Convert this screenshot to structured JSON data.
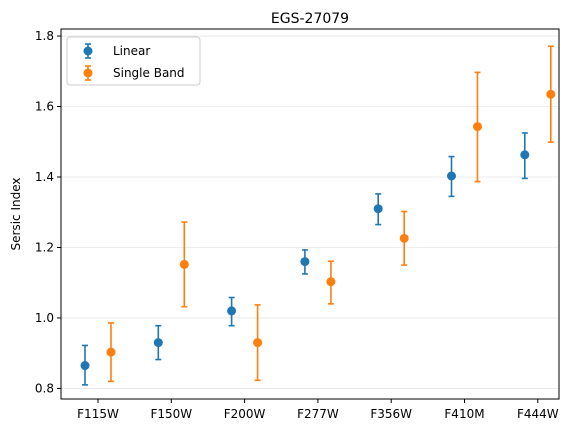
{
  "chart_data": {
    "type": "scatter",
    "title": "EGS-27079",
    "xlabel": "",
    "ylabel": "Sersic Index",
    "categories": [
      "F115W",
      "F150W",
      "F200W",
      "F277W",
      "F356W",
      "F410M",
      "F444W"
    ],
    "ylim": [
      0.77,
      1.82
    ],
    "yticks": [
      "0.8",
      "1.0",
      "1.2",
      "1.4",
      "1.6",
      "1.8"
    ],
    "grid": "horizontal",
    "legend_position": "top-left",
    "series": [
      {
        "name": "Linear",
        "color": "#1f77b4",
        "values": [
          0.865,
          0.93,
          1.02,
          1.16,
          1.31,
          1.403,
          1.463
        ],
        "err_low": [
          0.055,
          0.048,
          0.042,
          0.035,
          0.045,
          0.058,
          0.067
        ],
        "err_high": [
          0.057,
          0.048,
          0.038,
          0.033,
          0.042,
          0.055,
          0.062
        ]
      },
      {
        "name": "Single Band",
        "color": "#ff7f0e",
        "values": [
          0.903,
          1.152,
          0.93,
          1.103,
          1.226,
          1.543,
          1.635
        ],
        "err_low": [
          0.083,
          0.12,
          0.107,
          0.063,
          0.076,
          0.156,
          0.136
        ],
        "err_high": [
          0.083,
          0.12,
          0.107,
          0.058,
          0.076,
          0.154,
          0.136
        ]
      }
    ]
  }
}
